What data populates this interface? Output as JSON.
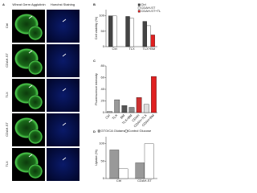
{
  "panel_a": {
    "label": "A",
    "columns": [
      "Wheat Germ Agglutinin",
      "Hoechst Staining"
    ],
    "rows": [
      "Ctrl",
      "CDAH-ST",
      "TLX",
      "CDAH-ST",
      "TLX"
    ]
  },
  "chart_data": [
    {
      "type": "bar",
      "label": "B",
      "y_label": "Cell viability (%)",
      "categories": [
        "Ctrl",
        "TLX",
        "TLX+BM"
      ],
      "series": [
        {
          "name": "Ctrl",
          "color": "#444444",
          "values": [
            100,
            98,
            82
          ]
        },
        {
          "name": "CDAH-ST",
          "color": "#ffffff",
          "values": [
            100,
            92,
            68
          ]
        },
        {
          "name": "CDAH-ST+TLX",
          "color": "#e02020",
          "values": [
            null,
            null,
            38
          ]
        }
      ],
      "ylim": [
        0,
        120
      ],
      "yticks": [
        0,
        50,
        100
      ],
      "legend": "top-right"
    },
    {
      "type": "bar",
      "label": "C",
      "y_label": "Fluorescence intensity",
      "categories": [
        "Ctrl",
        "TLX",
        "BM",
        "TLX+BM",
        "CDAH",
        "CDAH+TLX",
        "CDAH+BM"
      ],
      "values": [
        2,
        22,
        12,
        9,
        26,
        14,
        62
      ],
      "colors": [
        "#bbbbbb",
        "#999999",
        "#555555",
        "#888888",
        "#cc3030",
        "#dddddd",
        "#e02020"
      ],
      "ylim": [
        0,
        80
      ],
      "yticks": [
        0,
        20,
        40,
        60,
        80
      ]
    },
    {
      "type": "bar",
      "label": "D",
      "y_label": "Uptake (%)",
      "categories": [
        "Ctrl",
        "CDAH-ST"
      ],
      "series": [
        {
          "name": "GTO/CA Glutamate",
          "color": "#999999",
          "values": [
            82,
            45
          ]
        },
        {
          "name": "Control Glucose",
          "color": "#ffffff",
          "values": [
            28,
            100
          ]
        }
      ],
      "ylim": [
        0,
        120
      ],
      "yticks": [
        0,
        50,
        100
      ],
      "legend": "top"
    }
  ]
}
